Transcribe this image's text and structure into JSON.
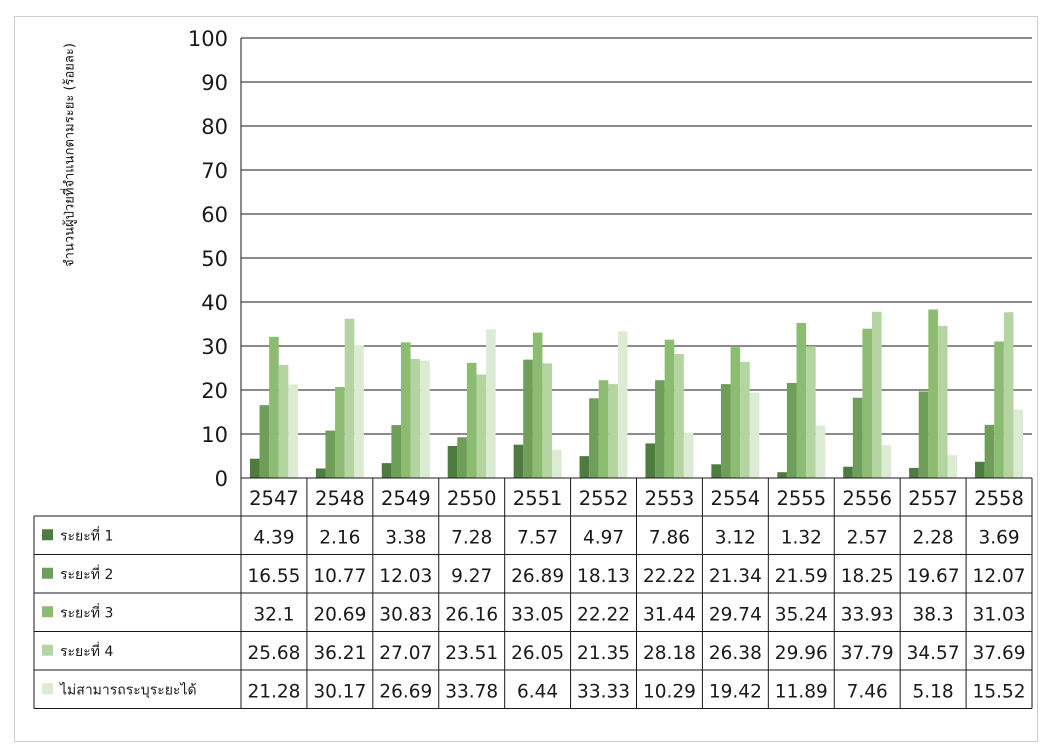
{
  "chart_data": {
    "type": "bar",
    "ylabel": "จำนวนผู้ป่วยที่จำแนกตามระยะ (ร้อยละ)",
    "ylim": [
      0,
      100
    ],
    "yticks": [
      0,
      10,
      20,
      30,
      40,
      50,
      60,
      70,
      80,
      90,
      100
    ],
    "grid": true,
    "legend": "data-table",
    "categories": [
      "2547",
      "2548",
      "2549",
      "2550",
      "2551",
      "2552",
      "2553",
      "2554",
      "2555",
      "2556",
      "2557",
      "2558"
    ],
    "series": [
      {
        "name": "ระยะที่ 1",
        "color": "#4e7b3f",
        "values": [
          4.39,
          2.16,
          3.38,
          7.28,
          7.57,
          4.97,
          7.86,
          3.12,
          1.32,
          2.57,
          2.28,
          3.69
        ]
      },
      {
        "name": "ระยะที่ 2",
        "color": "#6e9e5a",
        "values": [
          16.55,
          10.77,
          12.03,
          9.27,
          26.89,
          18.13,
          22.22,
          21.34,
          21.59,
          18.25,
          19.67,
          12.07
        ]
      },
      {
        "name": "ระยะที่ 3",
        "color": "#8cbb72",
        "values": [
          32.1,
          20.69,
          30.83,
          26.16,
          33.05,
          22.22,
          31.44,
          29.74,
          35.24,
          33.93,
          38.3,
          31.03
        ]
      },
      {
        "name": "ระยะที่ 4",
        "color": "#b4d5a2",
        "values": [
          25.68,
          36.21,
          27.07,
          23.51,
          26.05,
          21.35,
          28.18,
          26.38,
          29.96,
          37.79,
          34.57,
          37.69
        ]
      },
      {
        "name": "ไม่สามารถระบุระยะได้",
        "color": "#dcebd3",
        "values": [
          21.28,
          30.17,
          26.69,
          33.78,
          6.44,
          33.33,
          10.29,
          19.42,
          11.89,
          7.46,
          5.18,
          15.52
        ]
      }
    ]
  }
}
